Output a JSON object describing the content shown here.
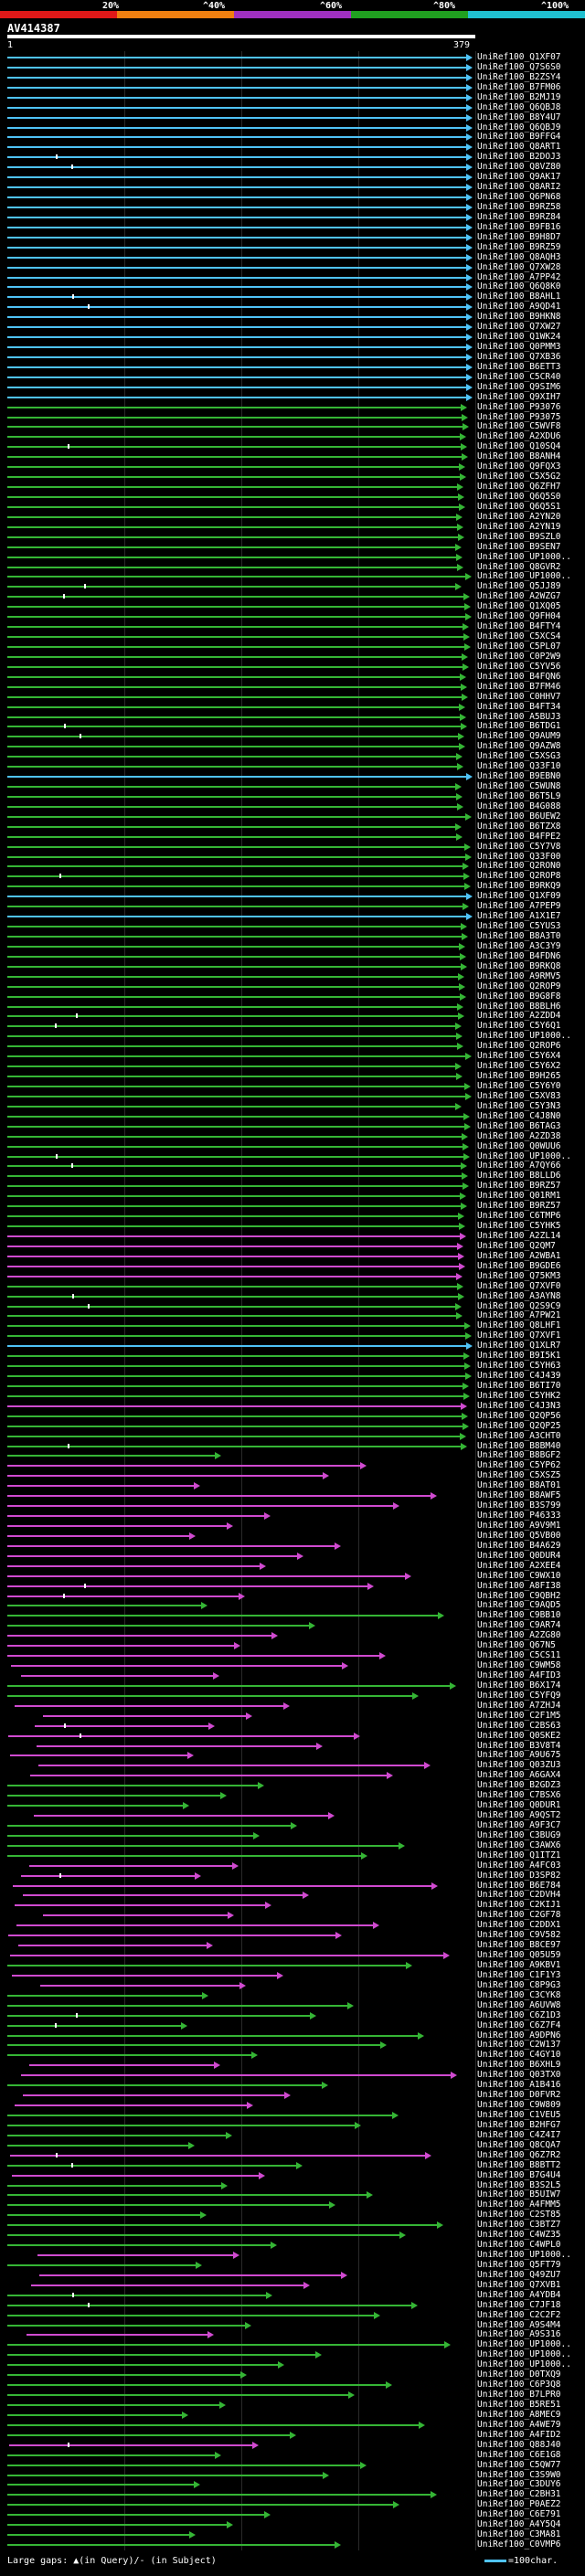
{
  "legend": {
    "ticks": [
      "20%",
      "^40%",
      "^60%",
      "^80%",
      "^100%"
    ],
    "colors": [
      "#e01818",
      "#f08010",
      "#a030c0",
      "#20a020",
      "#20c0d0"
    ]
  },
  "query": {
    "name": "AV414387",
    "start": "1",
    "end": "379"
  },
  "hits": [
    {
      "id": "UniRef100_Q1XF07",
      "c": 0
    },
    {
      "id": "UniRef100_Q7S6S0",
      "c": 0
    },
    {
      "id": "UniRef100_B2ZSY4",
      "c": 0
    },
    {
      "id": "UniRef100_B7FM06",
      "c": 0
    },
    {
      "id": "UniRef100_B2MJ19",
      "c": 0
    },
    {
      "id": "UniRef100_Q6QBJ8",
      "c": 0
    },
    {
      "id": "UniRef100_B8Y4U7",
      "c": 0
    },
    {
      "id": "UniRef100_Q6QBJ9",
      "c": 0
    },
    {
      "id": "UniRef100_B9FFG4",
      "c": 0
    },
    {
      "id": "UniRef100_Q8ART1",
      "c": 0
    },
    {
      "id": "UniRef100_B2DOJ3",
      "c": 0
    },
    {
      "id": "UniRef100_Q8VZ80",
      "c": 0
    },
    {
      "id": "UniRef100_Q9AK17",
      "c": 0
    },
    {
      "id": "UniRef100_Q8ARI2",
      "c": 0
    },
    {
      "id": "UniRef100_Q6PN68",
      "c": 0
    },
    {
      "id": "UniRef100_B9RZ58",
      "c": 0
    },
    {
      "id": "UniRef100_B9RZ84",
      "c": 0
    },
    {
      "id": "UniRef100_B9FB16",
      "c": 0
    },
    {
      "id": "UniRef100_B9H8D7",
      "c": 0
    },
    {
      "id": "UniRef100_B9RZ59",
      "c": 0
    },
    {
      "id": "UniRef100_Q8AQH3",
      "c": 0
    },
    {
      "id": "UniRef100_Q7XW28",
      "c": 0
    },
    {
      "id": "UniRef100_A7PP42",
      "c": 0
    },
    {
      "id": "UniRef100_Q6Q8K0",
      "c": 0
    },
    {
      "id": "UniRef100_B8AHL1",
      "c": 0
    },
    {
      "id": "UniRef100_A9QD41",
      "c": 0
    },
    {
      "id": "UniRef100_B9HKN8",
      "c": 0
    },
    {
      "id": "UniRef100_Q7XW27",
      "c": 0
    },
    {
      "id": "UniRef100_Q1WK24",
      "c": 0
    },
    {
      "id": "UniRef100_Q0PMM3",
      "c": 0
    },
    {
      "id": "UniRef100_Q7XB36",
      "c": 0
    },
    {
      "id": "UniRef100_B6ETT3",
      "c": 0
    },
    {
      "id": "UniRef100_C5CR40",
      "c": 0
    },
    {
      "id": "UniRef100_Q9SIM6",
      "c": 0
    },
    {
      "id": "UniRef100_Q9XIH7",
      "c": 0
    },
    {
      "id": "UniRef100_P93076",
      "c": 1
    },
    {
      "id": "UniRef100_P93075",
      "c": 1
    },
    {
      "id": "UniRef100_C5WVF8",
      "c": 1
    },
    {
      "id": "UniRef100_A2XDU6",
      "c": 1
    },
    {
      "id": "UniRef100_Q10SQ4",
      "c": 1
    },
    {
      "id": "UniRef100_B8ANH4",
      "c": 1
    },
    {
      "id": "UniRef100_Q9FQX3",
      "c": 1
    },
    {
      "id": "UniRef100_C5X5G2",
      "c": 1
    },
    {
      "id": "UniRef100_Q6ZFH7",
      "c": 1
    },
    {
      "id": "UniRef100_Q6Q5S0",
      "c": 1
    },
    {
      "id": "UniRef100_Q6Q5S1",
      "c": 1
    },
    {
      "id": "UniRef100_A2YN20",
      "c": 1
    },
    {
      "id": "UniRef100_A2YN19",
      "c": 1
    },
    {
      "id": "UniRef100_B9SZL0",
      "c": 1
    },
    {
      "id": "UniRef100_B9SEN7",
      "c": 1
    },
    {
      "id": "UniRef100_UP1000..",
      "c": 1
    },
    {
      "id": "UniRef100_Q8GVR2",
      "c": 1
    },
    {
      "id": "UniRef100_UP1000..",
      "c": 1
    },
    {
      "id": "UniRef100_Q5JJ89",
      "c": 1
    },
    {
      "id": "UniRef100_A2WZG7",
      "c": 1
    },
    {
      "id": "UniRef100_Q1XQ05",
      "c": 1
    },
    {
      "id": "UniRef100_Q9FH04",
      "c": 1
    },
    {
      "id": "UniRef100_B4FTY4",
      "c": 1
    },
    {
      "id": "UniRef100_C5XCS4",
      "c": 1
    },
    {
      "id": "UniRef100_C5PL07",
      "c": 1
    },
    {
      "id": "UniRef100_C0P2W9",
      "c": 1
    },
    {
      "id": "UniRef100_C5YV56",
      "c": 1
    },
    {
      "id": "UniRef100_B4FQN6",
      "c": 1
    },
    {
      "id": "UniRef100_B7FM46",
      "c": 1
    },
    {
      "id": "UniRef100_C0HHV7",
      "c": 1
    },
    {
      "id": "UniRef100_B4FT34",
      "c": 1
    },
    {
      "id": "UniRef100_A5BUJ3",
      "c": 1
    },
    {
      "id": "UniRef100_B6TDG1",
      "c": 1
    },
    {
      "id": "UniRef100_Q9AUM9",
      "c": 1
    },
    {
      "id": "UniRef100_Q9AZW8",
      "c": 1
    },
    {
      "id": "UniRef100_C5XSG3",
      "c": 1
    },
    {
      "id": "UniRef100_Q33F10",
      "c": 1
    },
    {
      "id": "UniRef100_B9EBN0",
      "c": 0
    },
    {
      "id": "UniRef100_C5WUN8",
      "c": 1
    },
    {
      "id": "UniRef100_B6T5L9",
      "c": 1
    },
    {
      "id": "UniRef100_B4G088",
      "c": 1
    },
    {
      "id": "UniRef100_B6UEW2",
      "c": 1
    },
    {
      "id": "UniRef100_B6TZX8",
      "c": 1
    },
    {
      "id": "UniRef100_B4FPE2",
      "c": 1
    },
    {
      "id": "UniRef100_C5Y7V8",
      "c": 1
    },
    {
      "id": "UniRef100_Q33F00",
      "c": 1
    },
    {
      "id": "UniRef100_Q2RON0",
      "c": 1
    },
    {
      "id": "UniRef100_Q2ROP8",
      "c": 1
    },
    {
      "id": "UniRef100_B9RKQ9",
      "c": 1
    },
    {
      "id": "UniRef100_Q1XF09",
      "c": 0
    },
    {
      "id": "UniRef100_A7PEP9",
      "c": 1
    },
    {
      "id": "UniRef100_A1X1E7",
      "c": 0
    },
    {
      "id": "UniRef100_C5YUS3",
      "c": 1
    },
    {
      "id": "UniRef100_B8A3T0",
      "c": 1
    },
    {
      "id": "UniRef100_A3C3Y9",
      "c": 1
    },
    {
      "id": "UniRef100_B4FDN6",
      "c": 1
    },
    {
      "id": "UniRef100_B9RKQ8",
      "c": 1
    },
    {
      "id": "UniRef100_A9RMV5",
      "c": 1
    },
    {
      "id": "UniRef100_Q2ROP9",
      "c": 1
    },
    {
      "id": "UniRef100_B9G8F8",
      "c": 1
    },
    {
      "id": "UniRef100_B8BLH6",
      "c": 1
    },
    {
      "id": "UniRef100_A2ZDD4",
      "c": 1
    },
    {
      "id": "UniRef100_C5Y6Q1",
      "c": 1
    },
    {
      "id": "UniRef100_UP1000..",
      "c": 1
    },
    {
      "id": "UniRef100_Q2ROP6",
      "c": 1
    },
    {
      "id": "UniRef100_C5Y6X4",
      "c": 1
    },
    {
      "id": "UniRef100_C5Y6X2",
      "c": 1
    },
    {
      "id": "UniRef100_B9H265",
      "c": 1
    },
    {
      "id": "UniRef100_C5Y6Y0",
      "c": 1
    },
    {
      "id": "UniRef100_C5XV83",
      "c": 1
    },
    {
      "id": "UniRef100_C5Y3N3",
      "c": 1
    },
    {
      "id": "UniRef100_C4J8N0",
      "c": 1
    },
    {
      "id": "UniRef100_B6TAG3",
      "c": 1
    },
    {
      "id": "UniRef100_A2ZD38",
      "c": 1
    },
    {
      "id": "UniRef100_Q0WUU6",
      "c": 1
    },
    {
      "id": "UniRef100_UP1000..",
      "c": 1
    },
    {
      "id": "UniRef100_A7QY66",
      "c": 1
    },
    {
      "id": "UniRef100_B8LLD6",
      "c": 1
    },
    {
      "id": "UniRef100_B9RZ57",
      "c": 1
    },
    {
      "id": "UniRef100_Q01RM1",
      "c": 1
    },
    {
      "id": "UniRef100_B9RZ57",
      "c": 1
    },
    {
      "id": "UniRef100_C6TMP6",
      "c": 1
    },
    {
      "id": "UniRef100_C5YHK5",
      "c": 1
    },
    {
      "id": "UniRef100_A2ZL14",
      "c": 2
    },
    {
      "id": "UniRef100_Q2QM7",
      "c": 2
    },
    {
      "id": "UniRef100_A2WBA1",
      "c": 2
    },
    {
      "id": "UniRef100_B9GDE6",
      "c": 2
    },
    {
      "id": "UniRef100_Q75KM3",
      "c": 2
    },
    {
      "id": "UniRef100_Q7XVF0",
      "c": 1
    },
    {
      "id": "UniRef100_A3AYN8",
      "c": 1
    },
    {
      "id": "UniRef100_Q2S9C9",
      "c": 1
    },
    {
      "id": "UniRef100_A7PW21",
      "c": 1
    },
    {
      "id": "UniRef100_Q8LHF1",
      "c": 1
    },
    {
      "id": "UniRef100_Q7XVF1",
      "c": 1
    },
    {
      "id": "UniRef100_Q1XLR7",
      "c": 0
    },
    {
      "id": "UniRef100_B9I5K1",
      "c": 1
    },
    {
      "id": "UniRef100_C5YH63",
      "c": 1
    },
    {
      "id": "UniRef100_C4J439",
      "c": 1
    },
    {
      "id": "UniRef100_B6TI70",
      "c": 1
    },
    {
      "id": "UniRef100_C5YHK2",
      "c": 1
    },
    {
      "id": "UniRef100_C4J3N3",
      "c": 2
    },
    {
      "id": "UniRef100_Q2QP56",
      "c": 1
    },
    {
      "id": "UniRef100_Q2QP25",
      "c": 1
    },
    {
      "id": "UniRef100_A3CHT0",
      "c": 1
    },
    {
      "id": "UniRef100_B8BM40",
      "c": 1
    },
    {
      "id": "UniRef100_B8BGF2",
      "c": 1
    },
    {
      "id": "UniRef100_C5YP62",
      "c": 2
    },
    {
      "id": "UniRef100_C5XSZ5",
      "c": 2
    },
    {
      "id": "UniRef100_B8AT01",
      "c": 2
    },
    {
      "id": "UniRef100_B8AWF5",
      "c": 2
    },
    {
      "id": "UniRef100_B3S799",
      "c": 2
    },
    {
      "id": "UniRef100_P46333",
      "c": 2
    },
    {
      "id": "UniRef100_A9V9M1",
      "c": 2
    },
    {
      "id": "UniRef100_Q5VB00",
      "c": 2
    },
    {
      "id": "UniRef100_B4A629",
      "c": 2
    },
    {
      "id": "UniRef100_Q0DUR4",
      "c": 2
    },
    {
      "id": "UniRef100_A2XEE4",
      "c": 2
    },
    {
      "id": "UniRef100_C9WX10",
      "c": 2
    },
    {
      "id": "UniRef100_A8FI38",
      "c": 2
    },
    {
      "id": "UniRef100_C9QBH2",
      "c": 2
    },
    {
      "id": "UniRef100_C9AQD5",
      "c": 1
    },
    {
      "id": "UniRef100_C9BB10",
      "c": 1
    },
    {
      "id": "UniRef100_C9AR74",
      "c": 1
    },
    {
      "id": "UniRef100_A2ZG80",
      "c": 2
    },
    {
      "id": "UniRef100_Q67N5",
      "c": 2
    },
    {
      "id": "UniRef100_C5CS11",
      "c": 2
    },
    {
      "id": "UniRef100_C9WM58",
      "c": 2
    },
    {
      "id": "UniRef100_A4FID3",
      "c": 2
    },
    {
      "id": "UniRef100_B6X174",
      "c": 1
    },
    {
      "id": "UniRef100_C5YFQ9",
      "c": 1
    },
    {
      "id": "UniRef100_A7ZHJ4",
      "c": 2
    },
    {
      "id": "UniRef100_C2F1M5",
      "c": 2
    },
    {
      "id": "UniRef100_C2BS63",
      "c": 2
    },
    {
      "id": "UniRef100_Q0SKE2",
      "c": 2
    },
    {
      "id": "UniRef100_B3V8T4",
      "c": 2
    },
    {
      "id": "UniRef100_A9U675",
      "c": 2
    },
    {
      "id": "UniRef100_Q03ZU3",
      "c": 2
    },
    {
      "id": "UniRef100_A6GAX4",
      "c": 2
    },
    {
      "id": "UniRef100_B2GDZ3",
      "c": 1
    },
    {
      "id": "UniRef100_C7BSX6",
      "c": 1
    },
    {
      "id": "UniRef100_Q0DUR1",
      "c": 1
    },
    {
      "id": "UniRef100_A9QST2",
      "c": 2
    },
    {
      "id": "UniRef100_A9F3C7",
      "c": 1
    },
    {
      "id": "UniRef100_C3BUG9",
      "c": 1
    },
    {
      "id": "UniRef100_C3AWX6",
      "c": 1
    },
    {
      "id": "UniRef100_Q1ITZ1",
      "c": 1
    },
    {
      "id": "UniRef100_A4FC03",
      "c": 2
    },
    {
      "id": "UniRef100_D3SP82",
      "c": 2
    },
    {
      "id": "UniRef100_B6E784",
      "c": 2
    },
    {
      "id": "UniRef100_C2DVH4",
      "c": 2
    },
    {
      "id": "UniRef100_C2KIJ1",
      "c": 2
    },
    {
      "id": "UniRef100_C2GF78",
      "c": 2
    },
    {
      "id": "UniRef100_C2DDX1",
      "c": 2
    },
    {
      "id": "UniRef100_C9V582",
      "c": 2
    },
    {
      "id": "UniRef100_B8CE97",
      "c": 2
    },
    {
      "id": "UniRef100_Q05U59",
      "c": 2
    },
    {
      "id": "UniRef100_A9KBV1",
      "c": 1
    },
    {
      "id": "UniRef100_C1F1Y3",
      "c": 2
    },
    {
      "id": "UniRef100_C8P9G3",
      "c": 2
    },
    {
      "id": "UniRef100_C3CYK8",
      "c": 1
    },
    {
      "id": "UniRef100_A6UVW8",
      "c": 1
    },
    {
      "id": "UniRef100_C6Z1D3",
      "c": 1
    },
    {
      "id": "UniRef100_C6Z7F4",
      "c": 1
    },
    {
      "id": "UniRef100_A9DPN6",
      "c": 1
    },
    {
      "id": "UniRef100_C2W137",
      "c": 1
    },
    {
      "id": "UniRef100_C4GY10",
      "c": 1
    },
    {
      "id": "UniRef100_B6XHL9",
      "c": 2
    },
    {
      "id": "UniRef100_Q03TX0",
      "c": 2
    },
    {
      "id": "UniRef100_A1B416",
      "c": 1
    },
    {
      "id": "UniRef100_D0FVR2",
      "c": 2
    },
    {
      "id": "UniRef100_C9W809",
      "c": 2
    },
    {
      "id": "UniRef100_C1VEU5",
      "c": 1
    },
    {
      "id": "UniRef100_B2HFG7",
      "c": 1
    },
    {
      "id": "UniRef100_C4Z4I7",
      "c": 1
    },
    {
      "id": "UniRef100_Q8CQA7",
      "c": 1
    },
    {
      "id": "UniRef100_Q6Z7R2",
      "c": 2
    },
    {
      "id": "UniRef100_B8BTT2",
      "c": 1
    },
    {
      "id": "UniRef100_B7G4U4",
      "c": 2
    },
    {
      "id": "UniRef100_B3S2L5",
      "c": 1
    },
    {
      "id": "UniRef100_B5UIW7",
      "c": 1
    },
    {
      "id": "UniRef100_A4FMM5",
      "c": 1
    },
    {
      "id": "UniRef100_C2ST85",
      "c": 1
    },
    {
      "id": "UniRef100_C3BTZ7",
      "c": 1
    },
    {
      "id": "UniRef100_C4WZ35",
      "c": 1
    },
    {
      "id": "UniRef100_C4WPL0",
      "c": 1
    },
    {
      "id": "UniRef100_UP1000..",
      "c": 2
    },
    {
      "id": "UniRef100_Q5FT79",
      "c": 1
    },
    {
      "id": "UniRef100_Q49ZU7",
      "c": 2
    },
    {
      "id": "UniRef100_Q7XVB1",
      "c": 2
    },
    {
      "id": "UniRef100_A4YDB4",
      "c": 1
    },
    {
      "id": "UniRef100_C7JF18",
      "c": 1
    },
    {
      "id": "UniRef100_C2C2F2",
      "c": 1
    },
    {
      "id": "UniRef100_A9S4M4",
      "c": 1
    },
    {
      "id": "UniRef100_A9S316",
      "c": 2
    },
    {
      "id": "UniRef100_UP1000..",
      "c": 1
    },
    {
      "id": "UniRef100_UP1000..",
      "c": 1
    },
    {
      "id": "UniRef100_UP1000..",
      "c": 1
    },
    {
      "id": "UniRef100_D0TXQ9",
      "c": 1
    },
    {
      "id": "UniRef100_C6P3Q8",
      "c": 1
    },
    {
      "id": "UniRef100_B7LPR0",
      "c": 1
    },
    {
      "id": "UniRef100_B5RE51",
      "c": 1
    },
    {
      "id": "UniRef100_A8MEC9",
      "c": 1
    },
    {
      "id": "UniRef100_A4WE79",
      "c": 1
    },
    {
      "id": "UniRef100_A4FID2",
      "c": 1
    },
    {
      "id": "UniRef100_Q88J40",
      "c": 2
    },
    {
      "id": "UniRef100_C6E1G8",
      "c": 1
    },
    {
      "id": "UniRef100_C5QW77",
      "c": 1
    },
    {
      "id": "UniRef100_C3S9W0",
      "c": 1
    },
    {
      "id": "UniRef100_C3DUY6",
      "c": 1
    },
    {
      "id": "UniRef100_C2BH31",
      "c": 1
    },
    {
      "id": "UniRef100_P0AEZ2",
      "c": 1
    },
    {
      "id": "UniRef100_C6E791",
      "c": 1
    },
    {
      "id": "UniRef100_A4Y5Q4",
      "c": 1
    },
    {
      "id": "UniRef100_C3MA81",
      "c": 1
    },
    {
      "id": "UniRef100_C0VMP6",
      "c": 1
    }
  ],
  "hit_colors": [
    "#4fc3f7",
    "#35b535",
    "#d04ad0"
  ],
  "footer": {
    "left": "Large gaps: ▲(in Query)/- (in Subject)",
    "right": "=100char."
  }
}
